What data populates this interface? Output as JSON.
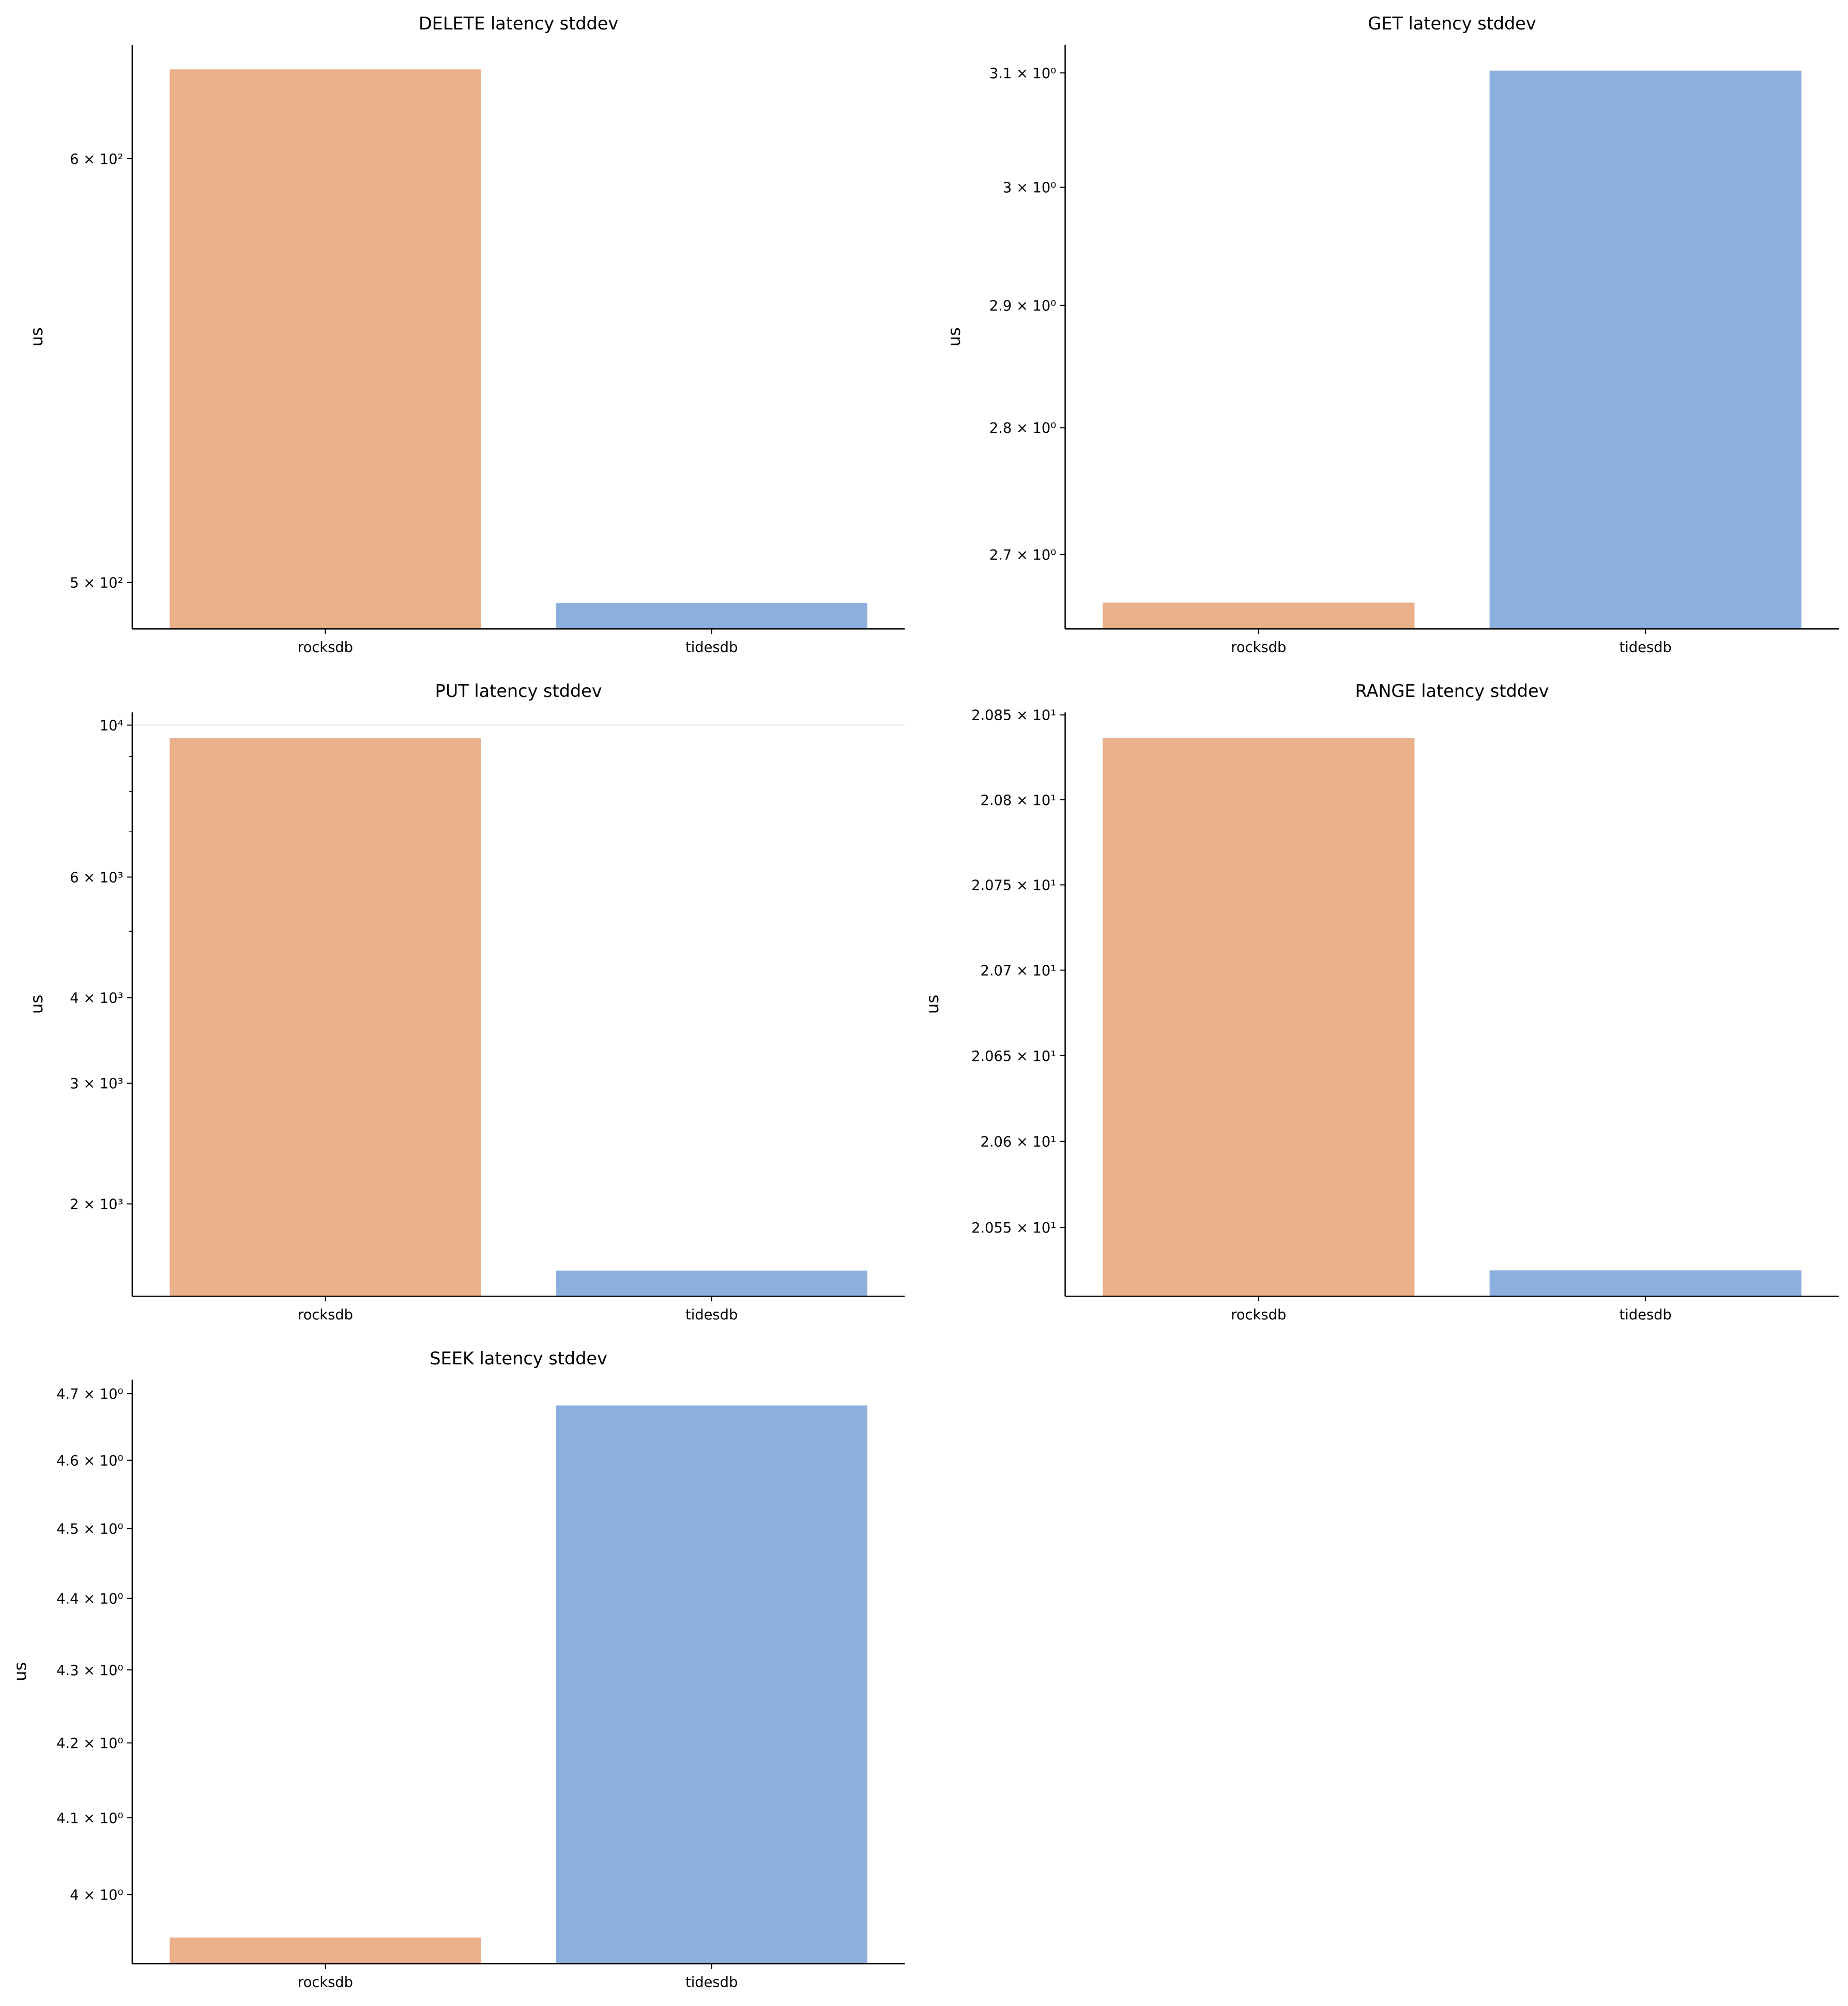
{
  "chart_data": [
    {
      "type": "bar",
      "title": "DELETE latency stddev",
      "ylabel": "us",
      "xlabel": "",
      "yscale": "log",
      "categories": [
        "rocksdb",
        "tidesdb"
      ],
      "values": [
        623.5,
        495.6
      ],
      "colors": [
        "#e9b08a",
        "#8cb0dd"
      ],
      "ylim": [
        490.1,
        630.1
      ],
      "yticks": [
        {
          "value": 500,
          "label": "5 × 10²"
        },
        {
          "value": 600,
          "label": "6 × 10²"
        }
      ],
      "minor_ticks": [],
      "grid": false
    },
    {
      "type": "bar",
      "title": "GET latency stddev",
      "ylabel": "us",
      "xlabel": "",
      "yscale": "log",
      "categories": [
        "rocksdb",
        "tidesdb"
      ],
      "values": [
        2.663,
        3.102
      ],
      "colors": [
        "#e9b08a",
        "#8cb0dd"
      ],
      "ylim": [
        2.643,
        3.125
      ],
      "yticks": [
        {
          "value": 2.7,
          "label": "2.7 × 10⁰"
        },
        {
          "value": 2.8,
          "label": "2.8 × 10⁰"
        },
        {
          "value": 2.9,
          "label": "2.9 × 10⁰"
        },
        {
          "value": 3.0,
          "label": "3 × 10⁰"
        },
        {
          "value": 3.1,
          "label": "3.1 × 10⁰"
        }
      ],
      "minor_ticks": [],
      "grid": false
    },
    {
      "type": "bar",
      "title": "PUT latency stddev",
      "ylabel": "us",
      "xlabel": "",
      "yscale": "log",
      "categories": [
        "rocksdb",
        "tidesdb"
      ],
      "values": [
        9578,
        1598
      ],
      "colors": [
        "#e9b08a",
        "#8cb0dd"
      ],
      "ylim": [
        1466,
        10441
      ],
      "yticks": [
        {
          "value": 2000,
          "label": "2 × 10³"
        },
        {
          "value": 3000,
          "label": "3 × 10³"
        },
        {
          "value": 4000,
          "label": "4 × 10³"
        },
        {
          "value": 6000,
          "label": "6 × 10³"
        },
        {
          "value": 10000,
          "label": "10⁴"
        }
      ],
      "minor_ticks": [
        5000,
        7000,
        8000,
        9000
      ],
      "grid": true
    },
    {
      "type": "bar",
      "title": "RANGE latency stddev",
      "ylabel": "us",
      "xlabel": "",
      "yscale": "log",
      "categories": [
        "rocksdb",
        "tidesdb"
      ],
      "values": [
        20.8365,
        20.525
      ],
      "colors": [
        "#e9b08a",
        "#8cb0dd"
      ],
      "ylim": [
        20.51,
        20.8515
      ],
      "yticks": [
        {
          "value": 20.55,
          "label": "2.055 × 10¹"
        },
        {
          "value": 20.6,
          "label": "2.06 × 10¹"
        },
        {
          "value": 20.65,
          "label": "2.065 × 10¹"
        },
        {
          "value": 20.7,
          "label": "2.07 × 10¹"
        },
        {
          "value": 20.75,
          "label": "2.075 × 10¹"
        },
        {
          "value": 20.8,
          "label": "2.08 × 10¹"
        },
        {
          "value": 20.85,
          "label": "2.085 × 10¹"
        }
      ],
      "minor_ticks": [],
      "grid": false
    },
    {
      "type": "bar",
      "title": "SEEK latency stddev",
      "ylabel": "us",
      "xlabel": "",
      "yscale": "log",
      "categories": [
        "rocksdb",
        "tidesdb"
      ],
      "values": [
        3.945,
        4.682
      ],
      "colors": [
        "#e9b08a",
        "#8cb0dd"
      ],
      "ylim": [
        3.912,
        4.721
      ],
      "yticks": [
        {
          "value": 4.0,
          "label": "4 × 10⁰"
        },
        {
          "value": 4.1,
          "label": "4.1 × 10⁰"
        },
        {
          "value": 4.2,
          "label": "4.2 × 10⁰"
        },
        {
          "value": 4.3,
          "label": "4.3 × 10⁰"
        },
        {
          "value": 4.4,
          "label": "4.4 × 10⁰"
        },
        {
          "value": 4.5,
          "label": "4.5 × 10⁰"
        },
        {
          "value": 4.6,
          "label": "4.6 × 10⁰"
        },
        {
          "value": 4.7,
          "label": "4.7 × 10⁰"
        }
      ],
      "minor_ticks": [],
      "grid": false
    }
  ]
}
